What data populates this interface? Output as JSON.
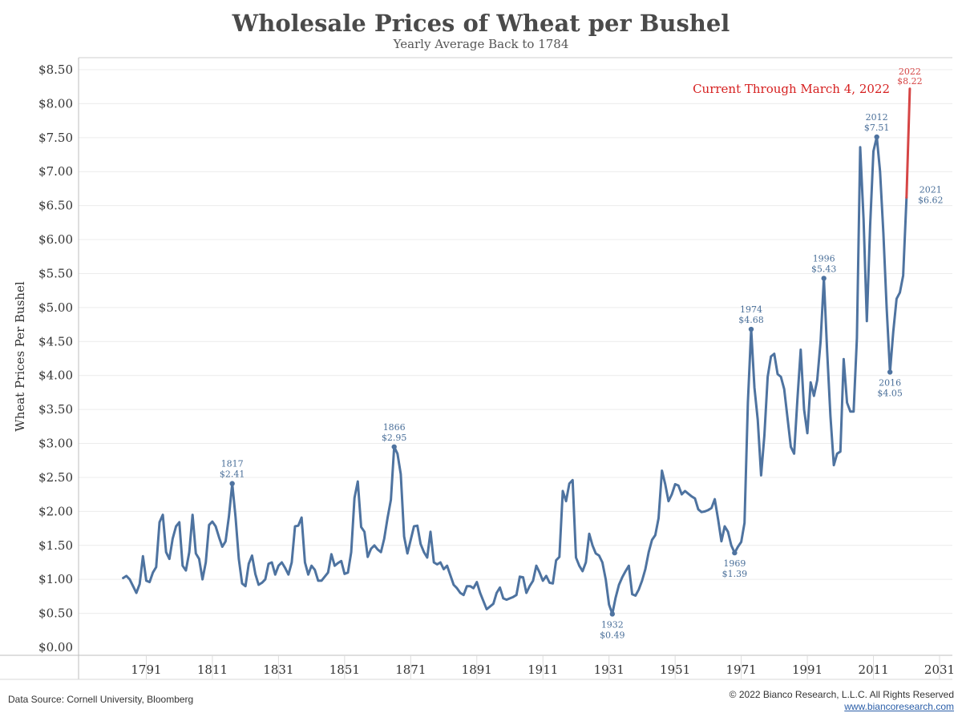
{
  "header": {
    "title": "Wholesale Prices of Wheat per Bushel",
    "subtitle": "Yearly Average Back to 1784"
  },
  "footer": {
    "source": "Data Source: Cornell University, Bloomberg",
    "copyright": "© 2022 Bianco Research, L.L.C. All Rights Reserved",
    "url": "www.biancoresearch.com"
  },
  "chart_data": {
    "type": "line",
    "title": "Wholesale Prices of Wheat per Bushel",
    "subtitle": "Yearly Average Back to 1784",
    "ylabel": "Wheat Prices Per Bushel",
    "xlabel": "",
    "xlim": [
      1771,
      2031
    ],
    "ylim": [
      0,
      8.5
    ],
    "x_ticks": [
      "1791",
      "1811",
      "1831",
      "1851",
      "1871",
      "1891",
      "1911",
      "1931",
      "1951",
      "1971",
      "1991",
      "2011",
      "2031"
    ],
    "y_ticks": [
      "$0.00",
      "$0.50",
      "$1.00",
      "$1.50",
      "$2.00",
      "$2.50",
      "$3.00",
      "$3.50",
      "$4.00",
      "$4.50",
      "$5.00",
      "$5.50",
      "$6.00",
      "$6.50",
      "$7.00",
      "$7.50",
      "$8.00",
      "$8.50"
    ],
    "grid": true,
    "colors": {
      "line": "#4e73a0",
      "current": "#d64545",
      "annotation": "#4a6f99",
      "current_text": "#d62020"
    },
    "series": [
      {
        "values": [
          [
            1784,
            1.02
          ],
          [
            1785,
            1.05
          ],
          [
            1786,
            1.0
          ],
          [
            1787,
            0.9
          ],
          [
            1788,
            0.8
          ],
          [
            1789,
            0.93
          ],
          [
            1790,
            1.34
          ],
          [
            1791,
            0.98
          ],
          [
            1792,
            0.96
          ],
          [
            1793,
            1.1
          ],
          [
            1794,
            1.18
          ],
          [
            1795,
            1.84
          ],
          [
            1796,
            1.95
          ],
          [
            1797,
            1.4
          ],
          [
            1798,
            1.3
          ],
          [
            1799,
            1.6
          ],
          [
            1800,
            1.78
          ],
          [
            1801,
            1.84
          ],
          [
            1802,
            1.2
          ],
          [
            1803,
            1.13
          ],
          [
            1804,
            1.4
          ],
          [
            1805,
            1.95
          ],
          [
            1806,
            1.38
          ],
          [
            1807,
            1.3
          ],
          [
            1808,
            1.0
          ],
          [
            1809,
            1.25
          ],
          [
            1810,
            1.8
          ],
          [
            1811,
            1.85
          ],
          [
            1812,
            1.78
          ],
          [
            1813,
            1.62
          ],
          [
            1814,
            1.48
          ],
          [
            1815,
            1.56
          ],
          [
            1816,
            1.92
          ],
          [
            1817,
            2.41
          ],
          [
            1818,
            1.92
          ],
          [
            1819,
            1.3
          ],
          [
            1820,
            0.94
          ],
          [
            1821,
            0.9
          ],
          [
            1822,
            1.23
          ],
          [
            1823,
            1.35
          ],
          [
            1824,
            1.08
          ],
          [
            1825,
            0.92
          ],
          [
            1826,
            0.95
          ],
          [
            1827,
            1.0
          ],
          [
            1828,
            1.23
          ],
          [
            1829,
            1.25
          ],
          [
            1830,
            1.07
          ],
          [
            1831,
            1.2
          ],
          [
            1832,
            1.25
          ],
          [
            1833,
            1.17
          ],
          [
            1834,
            1.07
          ],
          [
            1835,
            1.25
          ],
          [
            1836,
            1.78
          ],
          [
            1837,
            1.79
          ],
          [
            1838,
            1.91
          ],
          [
            1839,
            1.25
          ],
          [
            1840,
            1.07
          ],
          [
            1841,
            1.2
          ],
          [
            1842,
            1.14
          ],
          [
            1843,
            0.98
          ],
          [
            1844,
            0.98
          ],
          [
            1845,
            1.04
          ],
          [
            1846,
            1.1
          ],
          [
            1847,
            1.37
          ],
          [
            1848,
            1.2
          ],
          [
            1849,
            1.24
          ],
          [
            1850,
            1.27
          ],
          [
            1851,
            1.08
          ],
          [
            1852,
            1.1
          ],
          [
            1853,
            1.4
          ],
          [
            1854,
            2.2
          ],
          [
            1855,
            2.44
          ],
          [
            1856,
            1.77
          ],
          [
            1857,
            1.7
          ],
          [
            1858,
            1.33
          ],
          [
            1859,
            1.45
          ],
          [
            1860,
            1.5
          ],
          [
            1861,
            1.44
          ],
          [
            1862,
            1.4
          ],
          [
            1863,
            1.6
          ],
          [
            1864,
            1.9
          ],
          [
            1865,
            2.17
          ],
          [
            1866,
            2.95
          ],
          [
            1867,
            2.85
          ],
          [
            1868,
            2.55
          ],
          [
            1869,
            1.63
          ],
          [
            1870,
            1.38
          ],
          [
            1871,
            1.58
          ],
          [
            1872,
            1.78
          ],
          [
            1873,
            1.79
          ],
          [
            1874,
            1.52
          ],
          [
            1875,
            1.4
          ],
          [
            1876,
            1.32
          ],
          [
            1877,
            1.7
          ],
          [
            1878,
            1.25
          ],
          [
            1879,
            1.22
          ],
          [
            1880,
            1.25
          ],
          [
            1881,
            1.15
          ],
          [
            1882,
            1.2
          ],
          [
            1883,
            1.06
          ],
          [
            1884,
            0.92
          ],
          [
            1885,
            0.87
          ],
          [
            1886,
            0.8
          ],
          [
            1887,
            0.77
          ],
          [
            1888,
            0.9
          ],
          [
            1889,
            0.9
          ],
          [
            1890,
            0.87
          ],
          [
            1891,
            0.96
          ],
          [
            1892,
            0.8
          ],
          [
            1893,
            0.68
          ],
          [
            1894,
            0.56
          ],
          [
            1895,
            0.6
          ],
          [
            1896,
            0.64
          ],
          [
            1897,
            0.8
          ],
          [
            1898,
            0.88
          ],
          [
            1899,
            0.72
          ],
          [
            1900,
            0.7
          ],
          [
            1901,
            0.72
          ],
          [
            1902,
            0.74
          ],
          [
            1903,
            0.77
          ],
          [
            1904,
            1.04
          ],
          [
            1905,
            1.03
          ],
          [
            1906,
            0.8
          ],
          [
            1907,
            0.9
          ],
          [
            1908,
            0.98
          ],
          [
            1909,
            1.2
          ],
          [
            1910,
            1.1
          ],
          [
            1911,
            0.98
          ],
          [
            1912,
            1.05
          ],
          [
            1913,
            0.95
          ],
          [
            1914,
            0.94
          ],
          [
            1915,
            1.28
          ],
          [
            1916,
            1.33
          ],
          [
            1917,
            2.3
          ],
          [
            1918,
            2.15
          ],
          [
            1919,
            2.41
          ],
          [
            1920,
            2.46
          ],
          [
            1921,
            1.32
          ],
          [
            1922,
            1.2
          ],
          [
            1923,
            1.12
          ],
          [
            1924,
            1.25
          ],
          [
            1925,
            1.67
          ],
          [
            1926,
            1.5
          ],
          [
            1927,
            1.38
          ],
          [
            1928,
            1.35
          ],
          [
            1929,
            1.25
          ],
          [
            1930,
            1.0
          ],
          [
            1931,
            0.63
          ],
          [
            1932,
            0.49
          ],
          [
            1933,
            0.73
          ],
          [
            1934,
            0.92
          ],
          [
            1935,
            1.03
          ],
          [
            1936,
            1.12
          ],
          [
            1937,
            1.2
          ],
          [
            1938,
            0.78
          ],
          [
            1939,
            0.76
          ],
          [
            1940,
            0.85
          ],
          [
            1941,
            0.98
          ],
          [
            1942,
            1.15
          ],
          [
            1943,
            1.4
          ],
          [
            1944,
            1.58
          ],
          [
            1945,
            1.65
          ],
          [
            1946,
            1.9
          ],
          [
            1947,
            2.6
          ],
          [
            1948,
            2.4
          ],
          [
            1949,
            2.15
          ],
          [
            1950,
            2.25
          ],
          [
            1951,
            2.4
          ],
          [
            1952,
            2.38
          ],
          [
            1953,
            2.25
          ],
          [
            1954,
            2.3
          ],
          [
            1955,
            2.26
          ],
          [
            1956,
            2.22
          ],
          [
            1957,
            2.19
          ],
          [
            1958,
            2.03
          ],
          [
            1959,
            1.99
          ],
          [
            1960,
            2.0
          ],
          [
            1961,
            2.02
          ],
          [
            1962,
            2.05
          ],
          [
            1963,
            2.18
          ],
          [
            1964,
            1.88
          ],
          [
            1965,
            1.56
          ],
          [
            1966,
            1.78
          ],
          [
            1967,
            1.7
          ],
          [
            1968,
            1.5
          ],
          [
            1969,
            1.39
          ],
          [
            1970,
            1.48
          ],
          [
            1971,
            1.55
          ],
          [
            1972,
            1.83
          ],
          [
            1973,
            3.6
          ],
          [
            1974,
            4.68
          ],
          [
            1975,
            3.82
          ],
          [
            1976,
            3.35
          ],
          [
            1977,
            2.53
          ],
          [
            1978,
            3.12
          ],
          [
            1979,
            3.98
          ],
          [
            1980,
            4.28
          ],
          [
            1981,
            4.32
          ],
          [
            1982,
            4.02
          ],
          [
            1983,
            3.98
          ],
          [
            1984,
            3.8
          ],
          [
            1985,
            3.38
          ],
          [
            1986,
            2.95
          ],
          [
            1987,
            2.85
          ],
          [
            1988,
            3.65
          ],
          [
            1989,
            4.38
          ],
          [
            1990,
            3.5
          ],
          [
            1991,
            3.15
          ],
          [
            1992,
            3.9
          ],
          [
            1993,
            3.7
          ],
          [
            1994,
            3.93
          ],
          [
            1995,
            4.5
          ],
          [
            1996,
            5.43
          ],
          [
            1997,
            4.35
          ],
          [
            1998,
            3.4
          ],
          [
            1999,
            2.68
          ],
          [
            2000,
            2.85
          ],
          [
            2001,
            2.88
          ],
          [
            2002,
            4.24
          ],
          [
            2003,
            3.6
          ],
          [
            2004,
            3.47
          ],
          [
            2005,
            3.47
          ],
          [
            2006,
            4.55
          ],
          [
            2007,
            7.36
          ],
          [
            2008,
            6.3
          ],
          [
            2009,
            4.8
          ],
          [
            2010,
            6.2
          ],
          [
            2011,
            7.3
          ],
          [
            2012,
            7.51
          ],
          [
            2013,
            7.0
          ],
          [
            2014,
            6.1
          ],
          [
            2015,
            5.0
          ],
          [
            2016,
            4.05
          ],
          [
            2017,
            4.65
          ],
          [
            2018,
            5.13
          ],
          [
            2019,
            5.22
          ],
          [
            2020,
            5.47
          ],
          [
            2021,
            6.62
          ]
        ]
      },
      {
        "values": [
          [
            2021,
            6.62
          ],
          [
            2022,
            8.22
          ]
        ]
      }
    ],
    "annotations": [
      {
        "year": "1817",
        "price": "$2.41",
        "x": 1817,
        "y": 2.41,
        "pos": "above",
        "dot": true
      },
      {
        "year": "1866",
        "price": "$2.95",
        "x": 1866,
        "y": 2.95,
        "pos": "above",
        "dot": true
      },
      {
        "year": "1932",
        "price": "$0.49",
        "x": 1932,
        "y": 0.49,
        "pos": "below",
        "dot": true
      },
      {
        "year": "1969",
        "price": "$1.39",
        "x": 1969,
        "y": 1.39,
        "pos": "below",
        "dot": true
      },
      {
        "year": "1974",
        "price": "$4.68",
        "x": 1974,
        "y": 4.68,
        "pos": "above",
        "dot": true
      },
      {
        "year": "1996",
        "price": "$5.43",
        "x": 1996,
        "y": 5.43,
        "pos": "above",
        "dot": true
      },
      {
        "year": "2012",
        "price": "$7.51",
        "x": 2012,
        "y": 7.51,
        "pos": "above",
        "dot": true
      },
      {
        "year": "2016",
        "price": "$4.05",
        "x": 2016,
        "y": 4.05,
        "pos": "below",
        "dot": true
      },
      {
        "year": "2021",
        "price": "$6.62",
        "x": 2021,
        "y": 6.62,
        "pos": "right",
        "dot": false
      },
      {
        "year": "2022",
        "price": "$8.22",
        "x": 2022,
        "y": 8.22,
        "pos": "above-red",
        "dot": false
      }
    ],
    "current_note": "Current Through March 4, 2022"
  }
}
